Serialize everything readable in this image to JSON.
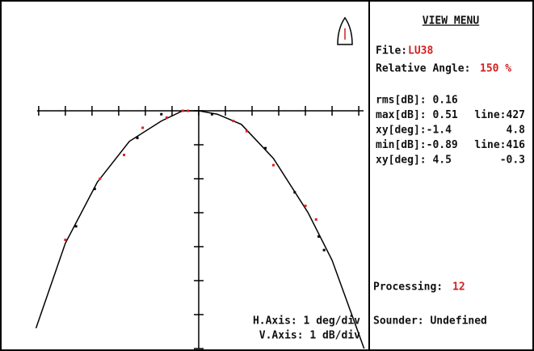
{
  "plot": {
    "h_axis": "H.Axis: 1 deg/div",
    "v_axis": "V.Axis: 1  dB/div",
    "xlim": [
      -7.45,
      6.24
    ],
    "ylim": [
      0.5,
      -7.0
    ],
    "xticks": [
      -6,
      -5,
      -4,
      -3,
      -2,
      -1,
      0,
      1,
      2,
      3,
      4,
      5,
      6
    ],
    "yticks": [
      0,
      -1,
      -2,
      -3,
      -4,
      -5,
      -6,
      -7
    ],
    "fit": {
      "color": "#000000",
      "x": [
        -6.1,
        -5,
        -3.8,
        -2.6,
        -1.4,
        -0.6,
        0,
        0.7,
        1.6,
        2.8,
        4.1,
        5,
        6.2
      ],
      "y": [
        -6.4,
        -3.9,
        -2.1,
        -0.9,
        -0.3,
        0,
        0,
        -0.1,
        -0.4,
        -1.4,
        -3,
        -4.4,
        -7.0
      ]
    },
    "points": [
      {
        "color": "#e02020",
        "x": [
          -5,
          -3.7,
          -2.8,
          -2.1,
          -1.2,
          -0.6,
          -0.4,
          1.3,
          1.8,
          2.8,
          4,
          4.4
        ],
        "y": [
          -3.8,
          -2,
          -1.3,
          -0.5,
          -0.2,
          0,
          0,
          -0.3,
          -0.6,
          -1.6,
          -2.8,
          -3.2
        ]
      },
      {
        "color": "#000000",
        "x": [
          -4.6,
          -3.9,
          -2.3,
          -1.4,
          0.5,
          2.5,
          3.6,
          4.5,
          4.7
        ],
        "y": [
          -3.4,
          -2.3,
          -0.8,
          -0.1,
          -0.1,
          -1.1,
          -2.4,
          -3.7,
          -4.1
        ]
      }
    ]
  },
  "menu": {
    "title": "VIEW MENU",
    "file_label": "File:",
    "file": "LU38",
    "angle_label": "Relative Angle:",
    "angle": "150 %",
    "stats": [
      [
        "rms[dB]: 0.16",
        ""
      ],
      [
        "max[dB]: 0.51",
        "line:427"
      ],
      [
        "xy[deg]:-1.4",
        "4.8"
      ],
      [
        "min[dB]:-0.89",
        "line:416"
      ],
      [
        "xy[deg]: 4.5",
        "-0.3"
      ]
    ],
    "processing_label": "Processing:",
    "processing": "12",
    "sounder": "Sounder: Undefined"
  }
}
